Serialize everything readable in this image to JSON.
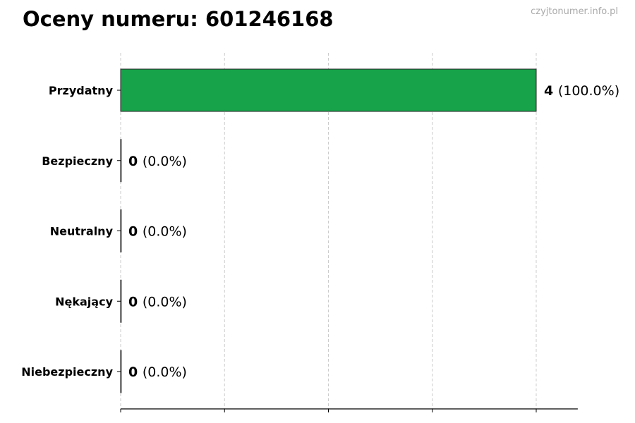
{
  "title": "Oceny numeru: 601246168",
  "watermark": "czyjtonumer.info.pl",
  "chart_data": {
    "type": "bar",
    "orientation": "horizontal",
    "title": "Oceny numeru: 601246168",
    "categories": [
      "Przydatny",
      "Bezpieczny",
      "Neutralny",
      "Nękający",
      "Niebezpieczny"
    ],
    "values": [
      4,
      0,
      0,
      0,
      0
    ],
    "percent_labels": [
      "(100.0%)",
      "(0.0%)",
      "(0.0%)",
      "(0.0%)",
      "(0.0%)"
    ],
    "colors": [
      "#17a34a",
      "#17a34a",
      "#17a34a",
      "#17a34a",
      "#17a34a"
    ],
    "xlim": [
      0,
      4.4
    ],
    "xticks": [
      0,
      1,
      2,
      3,
      4
    ],
    "xtick_labels_shown": false,
    "grid": "vertical-dashed",
    "xlabel": "",
    "ylabel": ""
  }
}
